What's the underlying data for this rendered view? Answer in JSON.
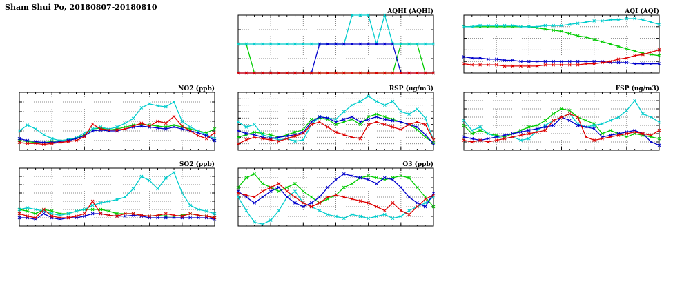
{
  "page": {
    "title": "Sham Shui Po, 20180807-20180810"
  },
  "x": [
    0,
    1,
    2,
    3,
    4,
    5,
    6,
    7,
    8,
    9,
    10,
    11,
    12,
    13,
    14,
    15,
    16,
    17,
    18,
    19,
    20,
    21,
    22,
    23,
    24
  ],
  "x_axis": {
    "min": 0,
    "max": 24,
    "ticks": [
      0,
      4,
      8,
      12,
      16,
      20,
      24
    ],
    "minor_every": 1
  },
  "colors": {
    "blue": "#0000cc",
    "red": "#dd0000",
    "green": "#00cc00",
    "cyan": "#00cccc"
  },
  "chart_data": [
    {
      "id": "aqhi",
      "type": "line",
      "title": "AQHI (AQHI)",
      "row": 0,
      "col": 1,
      "ylim": [
        2,
        4
      ],
      "yticks": [
        2.0,
        2.5,
        3.0,
        3.5,
        4.0
      ],
      "decimals": 1,
      "series": [
        {
          "name": "green",
          "color": "#00cc00",
          "values": [
            3,
            3,
            2,
            2,
            2,
            2,
            2,
            2,
            2,
            2,
            2,
            2,
            2,
            2,
            2,
            2,
            2,
            2,
            2,
            2,
            3,
            3,
            3,
            2,
            2
          ]
        },
        {
          "name": "cyan",
          "color": "#00cccc",
          "values": [
            3,
            3,
            3,
            3,
            3,
            3,
            3,
            3,
            3,
            3,
            3,
            3,
            3,
            3,
            4,
            4,
            4,
            3,
            4,
            3,
            3,
            3,
            3,
            3,
            3
          ]
        },
        {
          "name": "blue",
          "color": "#0000cc",
          "values": [
            2,
            2,
            2,
            2,
            2,
            2,
            2,
            2,
            2,
            2,
            3,
            3,
            3,
            3,
            3,
            3,
            3,
            3,
            3,
            3,
            2,
            2,
            2,
            2,
            2
          ]
        },
        {
          "name": "red",
          "color": "#dd0000",
          "values": [
            2,
            2,
            2,
            2,
            2,
            2,
            2,
            2,
            2,
            2,
            2,
            2,
            2,
            2,
            2,
            2,
            2,
            2,
            2,
            2,
            2,
            2,
            2,
            2,
            2
          ]
        }
      ]
    },
    {
      "id": "aqi",
      "type": "line",
      "title": "AQI (AQI)",
      "row": 0,
      "col": 2,
      "ylim": [
        30,
        80
      ],
      "yticks": [
        30,
        40,
        50,
        60,
        70,
        80
      ],
      "decimals": 0,
      "series": [
        {
          "name": "green",
          "color": "#00cc00",
          "values": [
            70,
            70,
            70,
            70,
            70,
            70,
            70,
            70,
            70,
            69,
            68,
            67,
            66,
            64,
            62,
            61,
            59,
            57,
            55,
            53,
            51,
            49,
            47,
            46,
            45
          ]
        },
        {
          "name": "cyan",
          "color": "#00cccc",
          "values": [
            70,
            70,
            71,
            71,
            71,
            71,
            71,
            70,
            70,
            70,
            71,
            71,
            71,
            72,
            73,
            74,
            75,
            75,
            76,
            76,
            77,
            77,
            76,
            74,
            72
          ]
        },
        {
          "name": "blue",
          "color": "#0000cc",
          "values": [
            44,
            43,
            43,
            42,
            42,
            41,
            41,
            40,
            40,
            40,
            40,
            40,
            40,
            40,
            40,
            40,
            40,
            40,
            39,
            39,
            39,
            38,
            38,
            38,
            38
          ]
        },
        {
          "name": "red",
          "color": "#dd0000",
          "values": [
            38,
            37,
            37,
            37,
            37,
            36,
            36,
            36,
            36,
            36,
            37,
            37,
            37,
            37,
            37,
            38,
            38,
            39,
            40,
            42,
            43,
            45,
            46,
            48,
            50
          ]
        }
      ]
    },
    {
      "id": "no2",
      "type": "line",
      "title": "NO2 (ppb)",
      "row": 1,
      "col": 0,
      "ylim": [
        0,
        60
      ],
      "yticks": [
        0,
        10,
        20,
        30,
        40,
        50,
        60
      ],
      "decimals": 0,
      "series": [
        {
          "name": "green",
          "color": "#00cc00",
          "values": [
            10,
            9,
            8,
            8,
            9,
            10,
            11,
            12,
            16,
            22,
            23,
            21,
            22,
            24,
            26,
            27,
            26,
            25,
            24,
            26,
            24,
            22,
            20,
            18,
            22
          ]
        },
        {
          "name": "cyan",
          "color": "#00cccc",
          "values": [
            20,
            26,
            22,
            16,
            12,
            10,
            11,
            13,
            18,
            22,
            24,
            22,
            24,
            28,
            33,
            44,
            48,
            46,
            45,
            50,
            30,
            24,
            20,
            16,
            12
          ]
        },
        {
          "name": "blue",
          "color": "#0000cc",
          "values": [
            12,
            10,
            9,
            8,
            8,
            9,
            10,
            12,
            15,
            20,
            21,
            20,
            20,
            22,
            24,
            25,
            24,
            23,
            22,
            24,
            22,
            20,
            18,
            15,
            10
          ]
        },
        {
          "name": "red",
          "color": "#dd0000",
          "values": [
            8,
            7,
            7,
            6,
            7,
            8,
            9,
            10,
            14,
            27,
            22,
            21,
            21,
            22,
            25,
            28,
            25,
            30,
            28,
            35,
            25,
            20,
            15,
            12,
            18
          ]
        }
      ]
    },
    {
      "id": "rsp",
      "type": "line",
      "title": "RSP (ug/m3)",
      "row": 1,
      "col": 1,
      "ylim": [
        0,
        45
      ],
      "yticks": [
        0,
        5,
        10,
        15,
        20,
        25,
        30,
        35,
        40,
        45
      ],
      "decimals": 0,
      "series": [
        {
          "name": "green",
          "color": "#00cc00",
          "values": [
            10,
            12,
            14,
            13,
            12,
            10,
            12,
            14,
            16,
            24,
            25,
            24,
            20,
            22,
            24,
            20,
            26,
            28,
            26,
            24,
            22,
            20,
            16,
            10,
            6
          ]
        },
        {
          "name": "cyan",
          "color": "#00cccc",
          "values": [
            22,
            18,
            20,
            12,
            10,
            8,
            9,
            7,
            8,
            20,
            26,
            25,
            24,
            30,
            35,
            38,
            42,
            38,
            35,
            38,
            30,
            28,
            32,
            25,
            8
          ]
        },
        {
          "name": "blue",
          "color": "#0000cc",
          "values": [
            15,
            13,
            12,
            10,
            9,
            10,
            11,
            12,
            14,
            22,
            26,
            25,
            22,
            24,
            26,
            22,
            24,
            26,
            24,
            23,
            22,
            20,
            18,
            12,
            5
          ]
        },
        {
          "name": "red",
          "color": "#dd0000",
          "values": [
            5,
            8,
            10,
            9,
            8,
            7,
            9,
            11,
            13,
            20,
            22,
            18,
            14,
            12,
            10,
            9,
            20,
            22,
            20,
            18,
            16,
            20,
            22,
            20,
            8
          ]
        }
      ]
    },
    {
      "id": "fsp",
      "type": "line",
      "title": "FSP (ug/m3)",
      "row": 1,
      "col": 2,
      "ylim": [
        0,
        35
      ],
      "yticks": [
        0,
        5,
        10,
        15,
        20,
        25,
        30,
        35
      ],
      "decimals": 0,
      "series": [
        {
          "name": "green",
          "color": "#00cc00",
          "values": [
            15,
            10,
            12,
            10,
            9,
            8,
            10,
            12,
            14,
            15,
            18,
            22,
            25,
            24,
            20,
            18,
            16,
            10,
            12,
            10,
            8,
            10,
            9,
            8,
            7
          ]
        },
        {
          "name": "cyan",
          "color": "#00cccc",
          "values": [
            18,
            12,
            14,
            10,
            8,
            7,
            8,
            6,
            7,
            12,
            15,
            18,
            20,
            22,
            16,
            14,
            15,
            16,
            18,
            20,
            24,
            30,
            22,
            20,
            17
          ]
        },
        {
          "name": "blue",
          "color": "#0000cc",
          "values": [
            8,
            7,
            6,
            7,
            8,
            9,
            10,
            11,
            12,
            13,
            14,
            15,
            20,
            18,
            15,
            14,
            13,
            8,
            9,
            10,
            11,
            12,
            10,
            5,
            3
          ]
        },
        {
          "name": "red",
          "color": "#dd0000",
          "values": [
            6,
            5,
            6,
            5,
            6,
            7,
            8,
            9,
            10,
            11,
            12,
            18,
            20,
            22,
            20,
            8,
            6,
            7,
            8,
            9,
            10,
            11,
            10,
            9,
            12
          ]
        }
      ]
    },
    {
      "id": "so2",
      "type": "line",
      "title": "SO2 (ppb)",
      "row": 2,
      "col": 0,
      "ylim": [
        0,
        7
      ],
      "yticks": [
        0,
        1,
        2,
        3,
        4,
        5,
        6,
        7
      ],
      "decimals": 0,
      "series": [
        {
          "name": "green",
          "color": "#00cc00",
          "values": [
            2,
            1.8,
            1.5,
            2,
            1.8,
            1.5,
            1.5,
            1.8,
            2,
            2,
            2,
            1.8,
            1.5,
            1.5,
            1.5,
            1.3,
            1.2,
            1.3,
            1.2,
            1.2,
            1.3,
            1.5,
            1.3,
            1.2,
            1
          ]
        },
        {
          "name": "cyan",
          "color": "#00cccc",
          "values": [
            2,
            2.2,
            2,
            1.8,
            1.5,
            1.3,
            1.5,
            1.8,
            2,
            2.5,
            2.8,
            3,
            3.2,
            3.5,
            4.5,
            6,
            5.5,
            4.5,
            5.8,
            6.5,
            4,
            2.5,
            2,
            1.8,
            1.5
          ]
        },
        {
          "name": "blue",
          "color": "#0000cc",
          "values": [
            1,
            1,
            0.8,
            1.5,
            1,
            0.8,
            1,
            1,
            1.2,
            1.5,
            1.5,
            1.3,
            1.2,
            1.2,
            1.3,
            1.2,
            1,
            1,
            1,
            1,
            1,
            1,
            1,
            1,
            0.8
          ]
        },
        {
          "name": "red",
          "color": "#dd0000",
          "values": [
            1.5,
            1.2,
            1,
            2,
            1.2,
            1,
            1,
            1.2,
            1.5,
            3,
            1.5,
            1.3,
            1.2,
            1.5,
            1.5,
            1.3,
            1.2,
            1.3,
            1.5,
            1.3,
            1.2,
            1.5,
            1.3,
            1.2,
            1
          ]
        }
      ]
    },
    {
      "id": "o3",
      "type": "line",
      "title": "O3 (ppb)",
      "row": 2,
      "col": 1,
      "ylim": [
        0,
        30
      ],
      "yticks": [
        0,
        5,
        10,
        15,
        20,
        25,
        30
      ],
      "decimals": 0,
      "series": [
        {
          "name": "green",
          "color": "#00cc00",
          "values": [
            20,
            25,
            27,
            22,
            20,
            18,
            20,
            22,
            18,
            15,
            12,
            14,
            16,
            20,
            22,
            25,
            26,
            25,
            24,
            25,
            26,
            25,
            20,
            15,
            10
          ]
        },
        {
          "name": "cyan",
          "color": "#00cccc",
          "values": [
            15,
            8,
            2,
            1,
            3,
            8,
            15,
            18,
            12,
            10,
            8,
            6,
            5,
            4,
            6,
            5,
            4,
            5,
            6,
            4,
            5,
            8,
            10,
            12,
            15
          ]
        },
        {
          "name": "blue",
          "color": "#0000cc",
          "values": [
            18,
            15,
            12,
            15,
            18,
            20,
            15,
            12,
            10,
            12,
            15,
            20,
            24,
            27,
            26,
            25,
            24,
            22,
            25,
            24,
            20,
            15,
            12,
            10,
            17
          ]
        },
        {
          "name": "red",
          "color": "#dd0000",
          "values": [
            17,
            16,
            15,
            18,
            20,
            22,
            18,
            15,
            12,
            10,
            12,
            15,
            16,
            15,
            14,
            13,
            12,
            10,
            8,
            12,
            8,
            6,
            10,
            14,
            16
          ]
        }
      ]
    }
  ]
}
